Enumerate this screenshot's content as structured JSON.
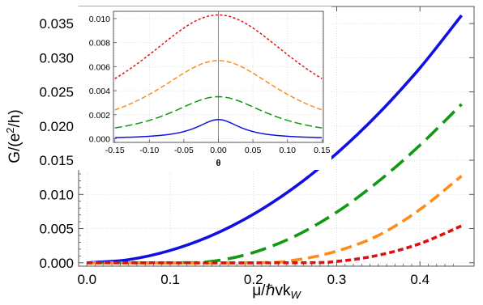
{
  "chart_data": [
    {
      "type": "line",
      "xlabel_prefix": "μ/ℏvk",
      "xlabel_sub": "W",
      "ylabel_prefix": "G/(e",
      "ylabel_sup": "2",
      "ylabel_suffix": "/h)",
      "xlim": [
        -0.01,
        0.465
      ],
      "ylim": [
        -0.0005,
        0.0375
      ],
      "x_ticks": [
        0.0,
        0.1,
        0.2,
        0.3,
        0.4
      ],
      "x_tick_labels": [
        "0.0",
        "0.1",
        "0.2",
        "0.3",
        "0.4"
      ],
      "y_ticks": [
        0.0,
        0.005,
        0.01,
        0.015,
        0.02,
        0.025,
        0.03,
        0.035
      ],
      "y_tick_labels": [
        "0.000",
        "0.005",
        "0.010",
        "0.015",
        "0.020",
        "0.025",
        "0.030",
        "0.035"
      ],
      "grid": true,
      "series": [
        {
          "color": "#1010e0",
          "dash": "solid",
          "x": [
            0.0,
            0.05,
            0.1,
            0.15,
            0.2,
            0.25,
            0.3,
            0.35,
            0.4,
            0.45
          ],
          "y": [
            0.0,
            0.00045,
            0.0018,
            0.004,
            0.0071,
            0.0111,
            0.016,
            0.0218,
            0.0285,
            0.0362
          ]
        },
        {
          "color": "#119911",
          "dash": "long",
          "x": [
            0.0,
            0.1,
            0.15,
            0.2,
            0.25,
            0.3,
            0.35,
            0.4,
            0.45
          ],
          "y": [
            0.0,
            0.0,
            0.0002,
            0.0015,
            0.0039,
            0.0074,
            0.0119,
            0.0172,
            0.0232
          ]
        },
        {
          "color": "#ff8c1a",
          "dash": "medium",
          "x": [
            0.0,
            0.2,
            0.25,
            0.3,
            0.35,
            0.4,
            0.45
          ],
          "y": [
            0.0,
            0.0,
            0.0004,
            0.0017,
            0.004,
            0.0078,
            0.0127
          ]
        },
        {
          "color": "#e01010",
          "dash": "short",
          "x": [
            0.0,
            0.25,
            0.3,
            0.35,
            0.4,
            0.45
          ],
          "y": [
            0.0,
            0.0,
            0.0002,
            0.0011,
            0.0028,
            0.0054
          ]
        }
      ]
    },
    {
      "type": "line",
      "xlabel": "θ",
      "xlim": [
        -0.152,
        0.152
      ],
      "ylim": [
        -0.0003,
        0.0106
      ],
      "x_ticks": [
        -0.15,
        -0.1,
        -0.05,
        0.0,
        0.05,
        0.1,
        0.15
      ],
      "x_tick_labels": [
        "-0.15",
        "-0.10",
        "-0.05",
        "0.00",
        "0.05",
        "0.10",
        "0.15"
      ],
      "y_ticks": [
        0.0,
        0.002,
        0.004,
        0.006,
        0.008,
        0.01
      ],
      "y_tick_labels": [
        "0.000",
        "0.002",
        "0.004",
        "0.006",
        "0.008",
        "0.010"
      ],
      "grid": true,
      "series": [
        {
          "color": "#e01010",
          "dash": "short",
          "peak": 0.0103,
          "edge": 0.005
        },
        {
          "color": "#ff8c1a",
          "dash": "medium",
          "peak": 0.0065,
          "edge": 0.0024
        },
        {
          "color": "#119911",
          "dash": "long",
          "peak": 0.0035,
          "edge": 0.0009
        },
        {
          "color": "#1010e0",
          "dash": "solid",
          "peak": 0.0016,
          "edge": 0.0001
        }
      ]
    }
  ]
}
